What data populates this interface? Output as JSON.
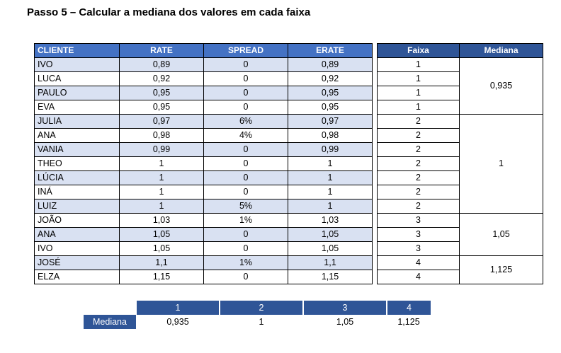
{
  "title": "Passo 5 – Calcular a mediana dos valores em cada faixa",
  "headers": {
    "cliente": "CLIENTE",
    "rate": "RATE",
    "spread": "SPREAD",
    "erate": "ERATE",
    "faixa": "Faixa",
    "mediana": "Mediana"
  },
  "rows": [
    {
      "cliente": "IVO",
      "rate": "0,89",
      "spread": "0",
      "erate": "0,89",
      "faixa": "1"
    },
    {
      "cliente": "LUCA",
      "rate": "0,92",
      "spread": "0",
      "erate": "0,92",
      "faixa": "1"
    },
    {
      "cliente": "PAULO",
      "rate": "0,95",
      "spread": "0",
      "erate": "0,95",
      "faixa": "1"
    },
    {
      "cliente": "EVA",
      "rate": "0,95",
      "spread": "0",
      "erate": "0,95",
      "faixa": "1"
    },
    {
      "cliente": "JULIA",
      "rate": "0,97",
      "spread": "6%",
      "erate": "0,97",
      "faixa": "2"
    },
    {
      "cliente": "ANA",
      "rate": "0,98",
      "spread": "4%",
      "erate": "0,98",
      "faixa": "2"
    },
    {
      "cliente": "VANIA",
      "rate": "0,99",
      "spread": "0",
      "erate": "0,99",
      "faixa": "2"
    },
    {
      "cliente": "THEO",
      "rate": "1",
      "spread": "0",
      "erate": "1",
      "faixa": "2"
    },
    {
      "cliente": "LÚCIA",
      "rate": "1",
      "spread": "0",
      "erate": "1",
      "faixa": "2"
    },
    {
      "cliente": "INÁ",
      "rate": "1",
      "spread": "0",
      "erate": "1",
      "faixa": "2"
    },
    {
      "cliente": "LUIZ",
      "rate": "1",
      "spread": "5%",
      "erate": "1",
      "faixa": "2"
    },
    {
      "cliente": "JOÃO",
      "rate": "1,03",
      "spread": "1%",
      "erate": "1,03",
      "faixa": "3"
    },
    {
      "cliente": "ANA",
      "rate": "1,05",
      "spread": "0",
      "erate": "1,05",
      "faixa": "3"
    },
    {
      "cliente": "IVO",
      "rate": "1,05",
      "spread": "0",
      "erate": "1,05",
      "faixa": "3"
    },
    {
      "cliente": "JOSÉ",
      "rate": "1,1",
      "spread": "1%",
      "erate": "1,1",
      "faixa": "4"
    },
    {
      "cliente": "ELZA",
      "rate": "1,15",
      "spread": "0",
      "erate": "1,15",
      "faixa": "4"
    }
  ],
  "medianas": [
    "0,935",
    "1",
    "1,05",
    "1,125"
  ],
  "summary": {
    "faixas": [
      "1",
      "2",
      "3",
      "4"
    ],
    "label": "Mediana",
    "values": [
      "0,935",
      "1",
      "1,05",
      "1,125"
    ]
  }
}
